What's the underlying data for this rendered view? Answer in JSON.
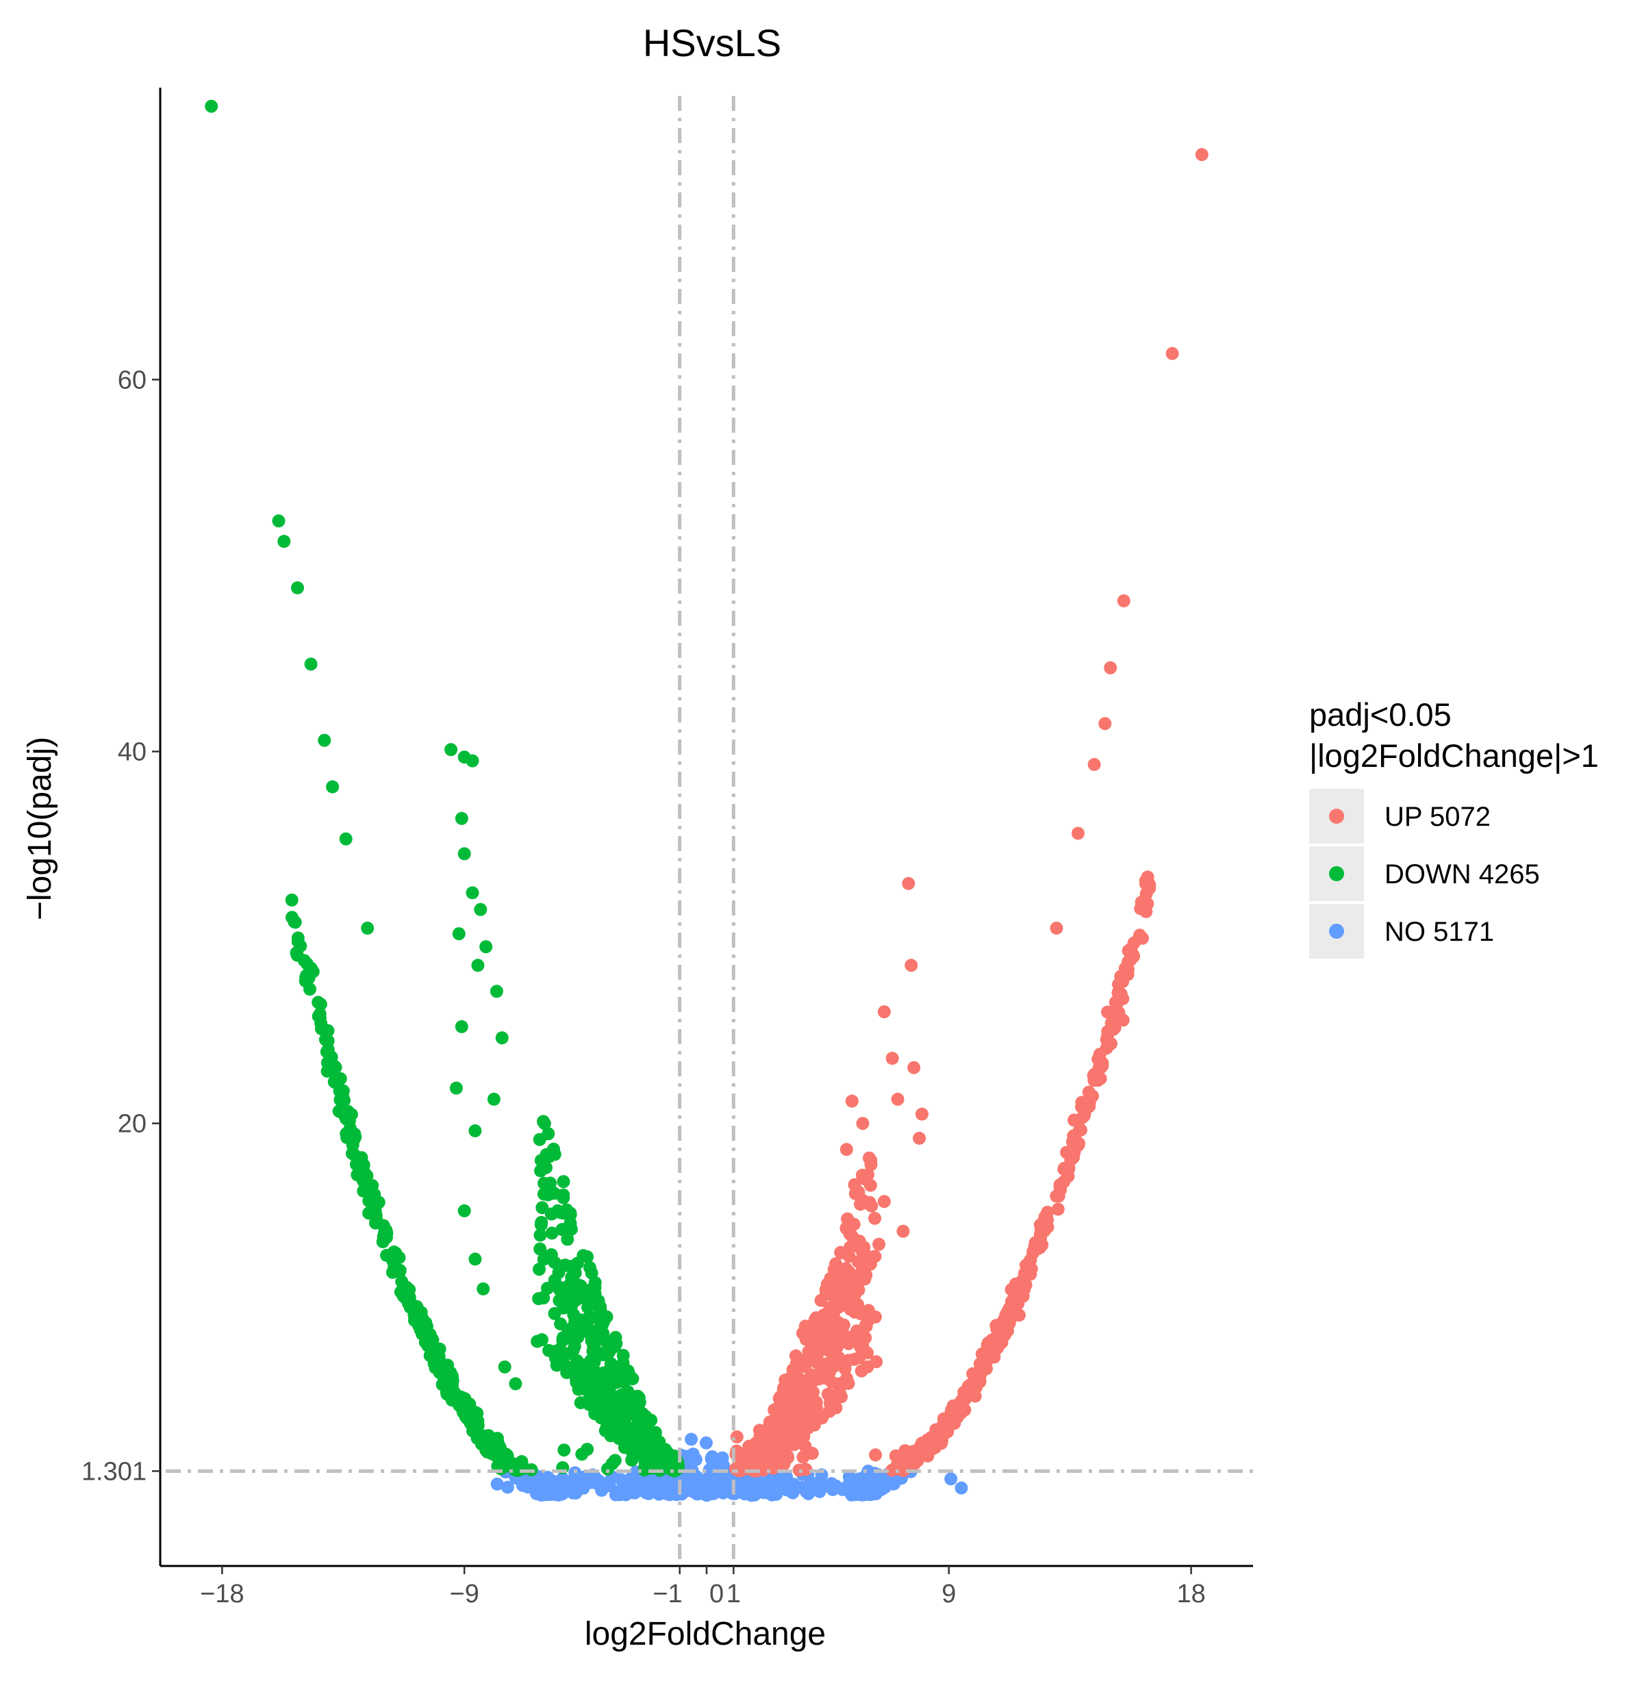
{
  "chart_data": {
    "type": "scatter",
    "title": "HSvsLS",
    "xlabel": "log2FoldChange",
    "ylabel": "−log10(padj)",
    "xlim": [
      -20.3,
      20.3
    ],
    "ylim": [
      -3.8,
      75.7
    ],
    "x_ticks": [
      -18,
      -9,
      -1,
      0,
      1,
      9,
      18
    ],
    "x_tick_labels": [
      "−18",
      "−9",
      "−1",
      "0",
      "1",
      "9",
      "18"
    ],
    "y_ticks": [
      1.301,
      20,
      40,
      60
    ],
    "y_tick_labels": [
      "1.301",
      "20",
      "40",
      "60"
    ],
    "thresholds": {
      "x": [
        -1,
        1
      ],
      "y": 1.301
    },
    "legend": {
      "title_line1": "padj<0.05",
      "title_line2": "|log2FoldChange|>1",
      "position": "right",
      "entries": [
        {
          "label": "UP 5072",
          "color": "#F8766D"
        },
        {
          "label": "DOWN 4265",
          "color": "#00BA38"
        },
        {
          "label": "NO 5171",
          "color": "#619CFF"
        }
      ]
    },
    "series": [
      {
        "name": "UP",
        "count": 5072,
        "color": "#F8766D",
        "notable_points": [
          [
            18.4,
            72.1
          ],
          [
            17.3,
            61.4
          ],
          [
            15.5,
            48.1
          ],
          [
            15.0,
            44.5
          ],
          [
            14.8,
            41.5
          ],
          [
            14.4,
            39.3
          ],
          [
            13.8,
            35.6
          ],
          [
            13.0,
            30.5
          ],
          [
            7.5,
            32.9
          ],
          [
            7.6,
            28.5
          ],
          [
            6.6,
            26.0
          ],
          [
            6.9,
            23.5
          ],
          [
            7.7,
            23.0
          ],
          [
            7.1,
            21.3
          ],
          [
            8.0,
            20.5
          ],
          [
            7.9,
            19.2
          ],
          [
            5.4,
            21.2
          ],
          [
            5.8,
            20.0
          ],
          [
            5.2,
            18.6
          ],
          [
            6.1,
            18.0
          ],
          [
            6.6,
            15.8
          ],
          [
            7.3,
            14.2
          ],
          [
            6.4,
            13.5
          ],
          [
            5.3,
            12.0
          ],
          [
            4.9,
            10.6
          ],
          [
            5.6,
            10.2
          ],
          [
            6.0,
            9.4
          ],
          [
            4.1,
            7.3
          ],
          [
            5.0,
            5.3
          ],
          [
            3.7,
            4.5
          ]
        ]
      },
      {
        "name": "DOWN",
        "count": 4265,
        "color": "#00BA38",
        "notable_points": [
          [
            -18.4,
            74.7
          ],
          [
            -15.9,
            52.4
          ],
          [
            -15.7,
            51.3
          ],
          [
            -15.2,
            48.8
          ],
          [
            -14.7,
            44.7
          ],
          [
            -14.2,
            40.6
          ],
          [
            -13.9,
            38.1
          ],
          [
            -13.4,
            35.3
          ],
          [
            -12.6,
            30.5
          ],
          [
            -9.5,
            40.1
          ],
          [
            -9.0,
            39.7
          ],
          [
            -8.7,
            39.5
          ],
          [
            -9.1,
            36.4
          ],
          [
            -9.0,
            34.5
          ],
          [
            -9.2,
            30.2
          ],
          [
            -8.7,
            32.4
          ],
          [
            -8.4,
            31.5
          ],
          [
            -8.2,
            29.5
          ],
          [
            -8.5,
            28.5
          ],
          [
            -7.8,
            27.1
          ],
          [
            -7.6,
            24.6
          ],
          [
            -9.1,
            25.2
          ],
          [
            -9.3,
            21.9
          ],
          [
            -7.9,
            21.3
          ],
          [
            -8.6,
            19.6
          ],
          [
            -9.0,
            15.3
          ],
          [
            -8.6,
            12.7
          ],
          [
            -8.3,
            11.1
          ],
          [
            -7.5,
            6.9
          ],
          [
            -7.1,
            6.0
          ]
        ]
      },
      {
        "name": "NO",
        "count": 5171,
        "color": "#619CFF",
        "notable_points": [
          [
            -5.8,
            0.2
          ],
          [
            -5.2,
            0.6
          ],
          [
            -6.1,
            1.0
          ],
          [
            -4.9,
            0.3
          ],
          [
            -1.5,
            1.0
          ],
          [
            -1.0,
            0.4
          ],
          [
            -0.5,
            0.2
          ],
          [
            0.0,
            0.0
          ],
          [
            0.5,
            0.2
          ],
          [
            1.0,
            0.5
          ],
          [
            1.8,
            1.1
          ],
          [
            2.6,
            0.8
          ],
          [
            3.7,
            0.2
          ],
          [
            4.2,
            0.2
          ],
          [
            4.8,
            0.5
          ],
          [
            5.3,
            1.0
          ],
          [
            6.0,
            1.3
          ]
        ]
      }
    ]
  }
}
